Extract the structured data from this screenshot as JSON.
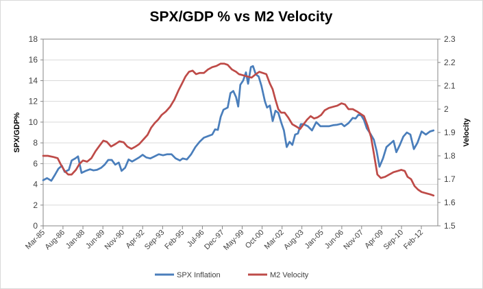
{
  "chart_data": {
    "type": "line",
    "title": "SPX/GDP % vs M2 Velocity",
    "ylabel_left": "SPX/GDP%",
    "ylabel_right": "Velocity",
    "ylim_left": [
      0,
      18
    ],
    "yticks_left": [
      "0",
      "2",
      "4",
      "6",
      "8",
      "10",
      "12",
      "14",
      "16",
      "18"
    ],
    "ylim_right": [
      1.5,
      2.3
    ],
    "yticks_right": [
      "1.5",
      "1.6",
      "1.7",
      "1.8",
      "1.9",
      "2",
      "2.1",
      "2.2",
      "2.3"
    ],
    "xlim": [
      1985.17,
      2013.25
    ],
    "xticks": [
      {
        "label": "Mar-85",
        "x": 1985.17
      },
      {
        "label": "Aug-86",
        "x": 1986.58
      },
      {
        "label": "Jan-88",
        "x": 1988.0
      },
      {
        "label": "Jun-89",
        "x": 1989.42
      },
      {
        "label": "Nov-90",
        "x": 1990.83
      },
      {
        "label": "Apr-92",
        "x": 1992.25
      },
      {
        "label": "Sep-93",
        "x": 1993.67
      },
      {
        "label": "Feb-95",
        "x": 1995.08
      },
      {
        "label": "Jul-96",
        "x": 1996.5
      },
      {
        "label": "Dec-97",
        "x": 1997.92
      },
      {
        "label": "May-99",
        "x": 1999.33
      },
      {
        "label": "Oct-00",
        "x": 2000.75
      },
      {
        "label": "Mar-02",
        "x": 2002.17
      },
      {
        "label": "Aug-03",
        "x": 2003.58
      },
      {
        "label": "Jan-05",
        "x": 2005.0
      },
      {
        "label": "Jun-06",
        "x": 2006.42
      },
      {
        "label": "Nov-07",
        "x": 2007.83
      },
      {
        "label": "Apr-09",
        "x": 2009.25
      },
      {
        "label": "Sep-10",
        "x": 2010.67
      },
      {
        "label": "Feb-12",
        "x": 2012.08
      }
    ],
    "grid": true,
    "legend_position": "bottom",
    "series": [
      {
        "name": "SPX Inflation",
        "axis": "left",
        "color": "#4a7ebb",
        "points": [
          [
            1985.17,
            4.4
          ],
          [
            1985.45,
            4.6
          ],
          [
            1985.75,
            4.35
          ],
          [
            1986.0,
            4.9
          ],
          [
            1986.25,
            5.5
          ],
          [
            1986.5,
            5.8
          ],
          [
            1986.7,
            5.2
          ],
          [
            1986.85,
            5.3
          ],
          [
            1987.0,
            5.4
          ],
          [
            1987.2,
            6.3
          ],
          [
            1987.45,
            6.5
          ],
          [
            1987.65,
            6.7
          ],
          [
            1987.9,
            5.1
          ],
          [
            1988.2,
            5.3
          ],
          [
            1988.5,
            5.45
          ],
          [
            1988.75,
            5.35
          ],
          [
            1989.0,
            5.4
          ],
          [
            1989.3,
            5.6
          ],
          [
            1989.55,
            5.9
          ],
          [
            1989.8,
            6.35
          ],
          [
            1990.05,
            6.35
          ],
          [
            1990.3,
            5.9
          ],
          [
            1990.55,
            6.1
          ],
          [
            1990.75,
            5.3
          ],
          [
            1991.0,
            5.6
          ],
          [
            1991.25,
            6.4
          ],
          [
            1991.5,
            6.2
          ],
          [
            1991.75,
            6.4
          ],
          [
            1992.0,
            6.6
          ],
          [
            1992.25,
            6.85
          ],
          [
            1992.5,
            6.6
          ],
          [
            1992.8,
            6.5
          ],
          [
            1993.1,
            6.7
          ],
          [
            1993.4,
            6.9
          ],
          [
            1993.7,
            6.8
          ],
          [
            1994.0,
            6.9
          ],
          [
            1994.3,
            6.9
          ],
          [
            1994.6,
            6.5
          ],
          [
            1994.9,
            6.3
          ],
          [
            1995.1,
            6.5
          ],
          [
            1995.4,
            6.4
          ],
          [
            1995.7,
            6.9
          ],
          [
            1996.0,
            7.6
          ],
          [
            1996.3,
            8.1
          ],
          [
            1996.6,
            8.5
          ],
          [
            1996.9,
            8.65
          ],
          [
            1997.2,
            8.8
          ],
          [
            1997.4,
            9.3
          ],
          [
            1997.6,
            9.25
          ],
          [
            1997.8,
            10.5
          ],
          [
            1998.0,
            11.2
          ],
          [
            1998.3,
            11.4
          ],
          [
            1998.5,
            12.8
          ],
          [
            1998.7,
            13.0
          ],
          [
            1998.9,
            12.4
          ],
          [
            1999.05,
            11.5
          ],
          [
            1999.2,
            13.6
          ],
          [
            1999.4,
            14.0
          ],
          [
            1999.6,
            14.8
          ],
          [
            1999.75,
            13.7
          ],
          [
            1999.95,
            15.3
          ],
          [
            2000.1,
            15.4
          ],
          [
            2000.3,
            14.6
          ],
          [
            2000.5,
            14.4
          ],
          [
            2000.7,
            13.5
          ],
          [
            2000.95,
            12.0
          ],
          [
            2001.1,
            11.4
          ],
          [
            2001.3,
            11.6
          ],
          [
            2001.5,
            10.1
          ],
          [
            2001.7,
            11.1
          ],
          [
            2001.9,
            10.9
          ],
          [
            2002.1,
            10.0
          ],
          [
            2002.3,
            9.2
          ],
          [
            2002.5,
            7.6
          ],
          [
            2002.7,
            8.1
          ],
          [
            2002.9,
            7.8
          ],
          [
            2003.1,
            8.8
          ],
          [
            2003.3,
            8.9
          ],
          [
            2003.5,
            9.8
          ],
          [
            2003.7,
            9.8
          ],
          [
            2004.0,
            9.6
          ],
          [
            2004.3,
            9.2
          ],
          [
            2004.6,
            10.0
          ],
          [
            2004.9,
            9.6
          ],
          [
            2005.2,
            9.6
          ],
          [
            2005.5,
            9.6
          ],
          [
            2005.8,
            9.7
          ],
          [
            2006.1,
            9.75
          ],
          [
            2006.4,
            9.85
          ],
          [
            2006.6,
            9.6
          ],
          [
            2006.9,
            9.9
          ],
          [
            2007.2,
            10.4
          ],
          [
            2007.4,
            10.35
          ],
          [
            2007.6,
            10.7
          ],
          [
            2007.8,
            10.65
          ],
          [
            2008.0,
            10.2
          ],
          [
            2008.2,
            9.4
          ],
          [
            2008.45,
            8.9
          ],
          [
            2008.7,
            8.3
          ],
          [
            2008.9,
            7.2
          ],
          [
            2009.1,
            5.7
          ],
          [
            2009.35,
            6.5
          ],
          [
            2009.6,
            7.6
          ],
          [
            2009.85,
            7.9
          ],
          [
            2010.1,
            8.2
          ],
          [
            2010.3,
            7.1
          ],
          [
            2010.55,
            7.8
          ],
          [
            2010.8,
            8.6
          ],
          [
            2011.05,
            9.0
          ],
          [
            2011.3,
            8.8
          ],
          [
            2011.55,
            7.4
          ],
          [
            2011.8,
            8.0
          ],
          [
            2012.1,
            9.1
          ],
          [
            2012.4,
            8.8
          ],
          [
            2012.7,
            9.1
          ],
          [
            2012.95,
            9.2
          ]
        ]
      },
      {
        "name": "M2 Velocity",
        "axis": "right",
        "color": "#be4b48",
        "points": [
          [
            1985.17,
            1.8
          ],
          [
            1985.5,
            1.8
          ],
          [
            1985.9,
            1.795
          ],
          [
            1986.2,
            1.79
          ],
          [
            1986.45,
            1.76
          ],
          [
            1986.7,
            1.735
          ],
          [
            1986.95,
            1.72
          ],
          [
            1987.2,
            1.72
          ],
          [
            1987.5,
            1.74
          ],
          [
            1987.75,
            1.765
          ],
          [
            1988.0,
            1.78
          ],
          [
            1988.3,
            1.775
          ],
          [
            1988.6,
            1.79
          ],
          [
            1988.9,
            1.82
          ],
          [
            1989.2,
            1.845
          ],
          [
            1989.45,
            1.865
          ],
          [
            1989.7,
            1.86
          ],
          [
            1990.0,
            1.84
          ],
          [
            1990.3,
            1.85
          ],
          [
            1990.6,
            1.862
          ],
          [
            1990.9,
            1.858
          ],
          [
            1991.15,
            1.84
          ],
          [
            1991.45,
            1.83
          ],
          [
            1991.75,
            1.84
          ],
          [
            1992.0,
            1.85
          ],
          [
            1992.3,
            1.87
          ],
          [
            1992.6,
            1.89
          ],
          [
            1992.85,
            1.92
          ],
          [
            1993.1,
            1.94
          ],
          [
            1993.35,
            1.955
          ],
          [
            1993.6,
            1.975
          ],
          [
            1993.9,
            1.99
          ],
          [
            1994.2,
            2.01
          ],
          [
            1994.5,
            2.04
          ],
          [
            1994.8,
            2.08
          ],
          [
            1995.05,
            2.11
          ],
          [
            1995.3,
            2.14
          ],
          [
            1995.55,
            2.16
          ],
          [
            1995.8,
            2.165
          ],
          [
            1996.05,
            2.15
          ],
          [
            1996.3,
            2.155
          ],
          [
            1996.6,
            2.155
          ],
          [
            1996.9,
            2.17
          ],
          [
            1997.2,
            2.18
          ],
          [
            1997.5,
            2.185
          ],
          [
            1997.8,
            2.195
          ],
          [
            1998.05,
            2.195
          ],
          [
            1998.3,
            2.19
          ],
          [
            1998.6,
            2.17
          ],
          [
            1998.9,
            2.16
          ],
          [
            1999.1,
            2.15
          ],
          [
            1999.4,
            2.145
          ],
          [
            1999.7,
            2.14
          ],
          [
            2000.0,
            2.135
          ],
          [
            2000.3,
            2.15
          ],
          [
            2000.55,
            2.16
          ],
          [
            2000.8,
            2.155
          ],
          [
            2001.05,
            2.15
          ],
          [
            2001.3,
            2.11
          ],
          [
            2001.5,
            2.085
          ],
          [
            2001.7,
            2.04
          ],
          [
            2001.9,
            2.0
          ],
          [
            2002.1,
            1.985
          ],
          [
            2002.35,
            1.985
          ],
          [
            2002.6,
            1.965
          ],
          [
            2002.9,
            1.935
          ],
          [
            2003.2,
            1.925
          ],
          [
            2003.45,
            1.915
          ],
          [
            2003.7,
            1.935
          ],
          [
            2003.95,
            1.955
          ],
          [
            2004.2,
            1.97
          ],
          [
            2004.45,
            1.96
          ],
          [
            2004.7,
            1.965
          ],
          [
            2004.95,
            1.975
          ],
          [
            2005.2,
            1.995
          ],
          [
            2005.5,
            2.005
          ],
          [
            2005.8,
            2.01
          ],
          [
            2006.1,
            2.015
          ],
          [
            2006.4,
            2.025
          ],
          [
            2006.65,
            2.02
          ],
          [
            2006.9,
            2.0
          ],
          [
            2007.2,
            2.0
          ],
          [
            2007.5,
            1.99
          ],
          [
            2007.75,
            1.98
          ],
          [
            2008.0,
            1.97
          ],
          [
            2008.25,
            1.93
          ],
          [
            2008.5,
            1.88
          ],
          [
            2008.7,
            1.81
          ],
          [
            2008.95,
            1.72
          ],
          [
            2009.2,
            1.705
          ],
          [
            2009.5,
            1.71
          ],
          [
            2009.8,
            1.72
          ],
          [
            2010.1,
            1.73
          ],
          [
            2010.4,
            1.735
          ],
          [
            2010.65,
            1.74
          ],
          [
            2010.9,
            1.735
          ],
          [
            2011.1,
            1.71
          ],
          [
            2011.35,
            1.7
          ],
          [
            2011.6,
            1.67
          ],
          [
            2011.85,
            1.655
          ],
          [
            2012.1,
            1.645
          ],
          [
            2012.4,
            1.64
          ],
          [
            2012.7,
            1.635
          ],
          [
            2012.95,
            1.63
          ]
        ]
      }
    ]
  }
}
